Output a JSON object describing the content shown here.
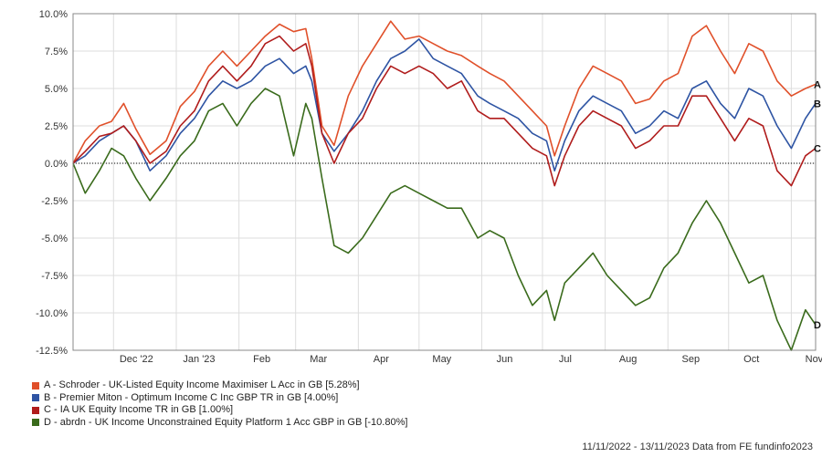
{
  "chart_data": {
    "type": "line",
    "title": "",
    "xlabel": "",
    "ylabel": "",
    "ylim": [
      -12.5,
      10
    ],
    "yticks": [
      -12.5,
      -10,
      -7.5,
      -5,
      -2.5,
      0,
      2.5,
      5,
      7.5,
      10
    ],
    "ytick_labels": [
      "-12.5%",
      "-10.0%",
      "-7.5%",
      "-5.0%",
      "-2.5%",
      "0.0%",
      "2.5%",
      "5.0%",
      "7.5%",
      "10.0%"
    ],
    "x_range": [
      "2022-11-11",
      "2023-11-13"
    ],
    "x_tick_labels": [
      {
        "date": "2022-12-01",
        "label": "Dec '22"
      },
      {
        "date": "2023-01-01",
        "label": "Jan '23"
      },
      {
        "date": "2023-02-01",
        "label": "Feb"
      },
      {
        "date": "2023-03-01",
        "label": "Mar"
      },
      {
        "date": "2023-04-01",
        "label": "Apr"
      },
      {
        "date": "2023-05-01",
        "label": "May"
      },
      {
        "date": "2023-06-01",
        "label": "Jun"
      },
      {
        "date": "2023-07-01",
        "label": "Jul"
      },
      {
        "date": "2023-08-01",
        "label": "Aug"
      },
      {
        "date": "2023-09-01",
        "label": "Sep"
      },
      {
        "date": "2023-10-01",
        "label": "Oct"
      },
      {
        "date": "2023-11-01",
        "label": "Nov"
      }
    ],
    "grid": true,
    "zero_line": "dotted",
    "series": [
      {
        "key": "A",
        "name": "A - Schroder - UK-Listed Equity Income Maximiser L Acc in GB [5.28%]",
        "color": "#e0502a",
        "points": [
          [
            "2022-11-11",
            0.0
          ],
          [
            "2022-11-17",
            1.5
          ],
          [
            "2022-11-24",
            2.5
          ],
          [
            "2022-11-30",
            2.8
          ],
          [
            "2022-12-06",
            4.0
          ],
          [
            "2022-12-12",
            2.3
          ],
          [
            "2022-12-19",
            0.6
          ],
          [
            "2022-12-27",
            1.5
          ],
          [
            "2023-01-03",
            3.8
          ],
          [
            "2023-01-10",
            4.8
          ],
          [
            "2023-01-17",
            6.5
          ],
          [
            "2023-01-24",
            7.5
          ],
          [
            "2023-01-31",
            6.5
          ],
          [
            "2023-02-07",
            7.5
          ],
          [
            "2023-02-14",
            8.5
          ],
          [
            "2023-02-21",
            9.3
          ],
          [
            "2023-02-28",
            8.8
          ],
          [
            "2023-03-06",
            9.0
          ],
          [
            "2023-03-09",
            7.0
          ],
          [
            "2023-03-14",
            2.5
          ],
          [
            "2023-03-20",
            1.2
          ],
          [
            "2023-03-27",
            4.5
          ],
          [
            "2023-04-03",
            6.5
          ],
          [
            "2023-04-10",
            8.0
          ],
          [
            "2023-04-17",
            9.5
          ],
          [
            "2023-04-24",
            8.3
          ],
          [
            "2023-05-01",
            8.5
          ],
          [
            "2023-05-08",
            8.0
          ],
          [
            "2023-05-15",
            7.5
          ],
          [
            "2023-05-22",
            7.2
          ],
          [
            "2023-05-30",
            6.5
          ],
          [
            "2023-06-05",
            6.0
          ],
          [
            "2023-06-12",
            5.5
          ],
          [
            "2023-06-19",
            4.5
          ],
          [
            "2023-06-26",
            3.5
          ],
          [
            "2023-07-03",
            2.5
          ],
          [
            "2023-07-07",
            0.5
          ],
          [
            "2023-07-12",
            2.5
          ],
          [
            "2023-07-19",
            5.0
          ],
          [
            "2023-07-26",
            6.5
          ],
          [
            "2023-08-02",
            6.0
          ],
          [
            "2023-08-09",
            5.5
          ],
          [
            "2023-08-16",
            4.0
          ],
          [
            "2023-08-23",
            4.3
          ],
          [
            "2023-08-30",
            5.5
          ],
          [
            "2023-09-06",
            6.0
          ],
          [
            "2023-09-13",
            8.5
          ],
          [
            "2023-09-20",
            9.2
          ],
          [
            "2023-09-27",
            7.5
          ],
          [
            "2023-10-04",
            6.0
          ],
          [
            "2023-10-11",
            8.0
          ],
          [
            "2023-10-18",
            7.5
          ],
          [
            "2023-10-25",
            5.5
          ],
          [
            "2023-11-01",
            4.5
          ],
          [
            "2023-11-08",
            5.0
          ],
          [
            "2023-11-13",
            5.28
          ]
        ]
      },
      {
        "key": "B",
        "name": "B - Premier Miton - Optimum Income C Inc GBP TR in GB [4.00%]",
        "color": "#2e54a3",
        "points": [
          [
            "2022-11-11",
            0.0
          ],
          [
            "2022-11-17",
            0.5
          ],
          [
            "2022-11-24",
            1.5
          ],
          [
            "2022-11-30",
            2.0
          ],
          [
            "2022-12-06",
            2.5
          ],
          [
            "2022-12-12",
            1.5
          ],
          [
            "2022-12-19",
            -0.5
          ],
          [
            "2022-12-27",
            0.5
          ],
          [
            "2023-01-03",
            2.0
          ],
          [
            "2023-01-10",
            3.0
          ],
          [
            "2023-01-17",
            4.5
          ],
          [
            "2023-01-24",
            5.5
          ],
          [
            "2023-01-31",
            5.0
          ],
          [
            "2023-02-07",
            5.5
          ],
          [
            "2023-02-14",
            6.5
          ],
          [
            "2023-02-21",
            7.0
          ],
          [
            "2023-02-28",
            6.0
          ],
          [
            "2023-03-06",
            6.5
          ],
          [
            "2023-03-09",
            5.5
          ],
          [
            "2023-03-14",
            2.0
          ],
          [
            "2023-03-20",
            0.8
          ],
          [
            "2023-03-27",
            2.0
          ],
          [
            "2023-04-03",
            3.5
          ],
          [
            "2023-04-10",
            5.5
          ],
          [
            "2023-04-17",
            7.0
          ],
          [
            "2023-04-24",
            7.5
          ],
          [
            "2023-05-01",
            8.3
          ],
          [
            "2023-05-08",
            7.0
          ],
          [
            "2023-05-15",
            6.5
          ],
          [
            "2023-05-22",
            6.0
          ],
          [
            "2023-05-30",
            4.5
          ],
          [
            "2023-06-05",
            4.0
          ],
          [
            "2023-06-12",
            3.5
          ],
          [
            "2023-06-19",
            3.0
          ],
          [
            "2023-06-26",
            2.0
          ],
          [
            "2023-07-03",
            1.5
          ],
          [
            "2023-07-07",
            -0.5
          ],
          [
            "2023-07-12",
            1.5
          ],
          [
            "2023-07-19",
            3.5
          ],
          [
            "2023-07-26",
            4.5
          ],
          [
            "2023-08-02",
            4.0
          ],
          [
            "2023-08-09",
            3.5
          ],
          [
            "2023-08-16",
            2.0
          ],
          [
            "2023-08-23",
            2.5
          ],
          [
            "2023-08-30",
            3.5
          ],
          [
            "2023-09-06",
            3.0
          ],
          [
            "2023-09-13",
            5.0
          ],
          [
            "2023-09-20",
            5.5
          ],
          [
            "2023-09-27",
            4.0
          ],
          [
            "2023-10-04",
            3.0
          ],
          [
            "2023-10-11",
            5.0
          ],
          [
            "2023-10-18",
            4.5
          ],
          [
            "2023-10-25",
            2.5
          ],
          [
            "2023-11-01",
            1.0
          ],
          [
            "2023-11-08",
            3.0
          ],
          [
            "2023-11-13",
            4.0
          ]
        ]
      },
      {
        "key": "C",
        "name": "C - IA UK Equity Income TR in GB [1.00%]",
        "color": "#b01c1c",
        "points": [
          [
            "2022-11-11",
            0.0
          ],
          [
            "2022-11-17",
            0.8
          ],
          [
            "2022-11-24",
            1.8
          ],
          [
            "2022-11-30",
            2.0
          ],
          [
            "2022-12-06",
            2.5
          ],
          [
            "2022-12-12",
            1.5
          ],
          [
            "2022-12-19",
            0.0
          ],
          [
            "2022-12-27",
            0.8
          ],
          [
            "2023-01-03",
            2.5
          ],
          [
            "2023-01-10",
            3.5
          ],
          [
            "2023-01-17",
            5.5
          ],
          [
            "2023-01-24",
            6.5
          ],
          [
            "2023-01-31",
            5.5
          ],
          [
            "2023-02-07",
            6.5
          ],
          [
            "2023-02-14",
            8.0
          ],
          [
            "2023-02-21",
            8.5
          ],
          [
            "2023-02-28",
            7.5
          ],
          [
            "2023-03-06",
            8.0
          ],
          [
            "2023-03-09",
            6.5
          ],
          [
            "2023-03-14",
            2.0
          ],
          [
            "2023-03-20",
            0.0
          ],
          [
            "2023-03-27",
            2.0
          ],
          [
            "2023-04-03",
            3.0
          ],
          [
            "2023-04-10",
            5.0
          ],
          [
            "2023-04-17",
            6.5
          ],
          [
            "2023-04-24",
            6.0
          ],
          [
            "2023-05-01",
            6.5
          ],
          [
            "2023-05-08",
            6.0
          ],
          [
            "2023-05-15",
            5.0
          ],
          [
            "2023-05-22",
            5.5
          ],
          [
            "2023-05-30",
            3.5
          ],
          [
            "2023-06-05",
            3.0
          ],
          [
            "2023-06-12",
            3.0
          ],
          [
            "2023-06-19",
            2.0
          ],
          [
            "2023-06-26",
            1.0
          ],
          [
            "2023-07-03",
            0.5
          ],
          [
            "2023-07-07",
            -1.5
          ],
          [
            "2023-07-12",
            0.5
          ],
          [
            "2023-07-19",
            2.5
          ],
          [
            "2023-07-26",
            3.5
          ],
          [
            "2023-08-02",
            3.0
          ],
          [
            "2023-08-09",
            2.5
          ],
          [
            "2023-08-16",
            1.0
          ],
          [
            "2023-08-23",
            1.5
          ],
          [
            "2023-08-30",
            2.5
          ],
          [
            "2023-09-06",
            2.5
          ],
          [
            "2023-09-13",
            4.5
          ],
          [
            "2023-09-20",
            4.5
          ],
          [
            "2023-09-27",
            3.0
          ],
          [
            "2023-10-04",
            1.5
          ],
          [
            "2023-10-11",
            3.0
          ],
          [
            "2023-10-18",
            2.5
          ],
          [
            "2023-10-25",
            -0.5
          ],
          [
            "2023-11-01",
            -1.5
          ],
          [
            "2023-11-08",
            0.5
          ],
          [
            "2023-11-13",
            1.0
          ]
        ]
      },
      {
        "key": "D",
        "name": "D - abrdn - UK Income Unconstrained Equity Platform 1 Acc GBP in GB [-10.80%]",
        "color": "#3a6b1c",
        "points": [
          [
            "2022-11-11",
            0.0
          ],
          [
            "2022-11-17",
            -2.0
          ],
          [
            "2022-11-24",
            -0.5
          ],
          [
            "2022-11-30",
            1.0
          ],
          [
            "2022-12-06",
            0.5
          ],
          [
            "2022-12-12",
            -1.0
          ],
          [
            "2022-12-19",
            -2.5
          ],
          [
            "2022-12-27",
            -1.0
          ],
          [
            "2023-01-03",
            0.5
          ],
          [
            "2023-01-10",
            1.5
          ],
          [
            "2023-01-17",
            3.5
          ],
          [
            "2023-01-24",
            4.0
          ],
          [
            "2023-01-31",
            2.5
          ],
          [
            "2023-02-07",
            4.0
          ],
          [
            "2023-02-14",
            5.0
          ],
          [
            "2023-02-21",
            4.5
          ],
          [
            "2023-02-28",
            0.5
          ],
          [
            "2023-03-06",
            4.0
          ],
          [
            "2023-03-09",
            3.0
          ],
          [
            "2023-03-14",
            -1.0
          ],
          [
            "2023-03-20",
            -5.5
          ],
          [
            "2023-03-27",
            -6.0
          ],
          [
            "2023-04-03",
            -5.0
          ],
          [
            "2023-04-10",
            -3.5
          ],
          [
            "2023-04-17",
            -2.0
          ],
          [
            "2023-04-24",
            -1.5
          ],
          [
            "2023-05-01",
            -2.0
          ],
          [
            "2023-05-08",
            -2.5
          ],
          [
            "2023-05-15",
            -3.0
          ],
          [
            "2023-05-22",
            -3.0
          ],
          [
            "2023-05-30",
            -5.0
          ],
          [
            "2023-06-05",
            -4.5
          ],
          [
            "2023-06-12",
            -5.0
          ],
          [
            "2023-06-19",
            -7.5
          ],
          [
            "2023-06-26",
            -9.5
          ],
          [
            "2023-07-03",
            -8.5
          ],
          [
            "2023-07-07",
            -10.5
          ],
          [
            "2023-07-12",
            -8.0
          ],
          [
            "2023-07-19",
            -7.0
          ],
          [
            "2023-07-26",
            -6.0
          ],
          [
            "2023-08-02",
            -7.5
          ],
          [
            "2023-08-09",
            -8.5
          ],
          [
            "2023-08-16",
            -9.5
          ],
          [
            "2023-08-23",
            -9.0
          ],
          [
            "2023-08-30",
            -7.0
          ],
          [
            "2023-09-06",
            -6.0
          ],
          [
            "2023-09-13",
            -4.0
          ],
          [
            "2023-09-20",
            -2.5
          ],
          [
            "2023-09-27",
            -4.0
          ],
          [
            "2023-10-04",
            -6.0
          ],
          [
            "2023-10-11",
            -8.0
          ],
          [
            "2023-10-18",
            -7.5
          ],
          [
            "2023-10-25",
            -10.5
          ],
          [
            "2023-11-01",
            -12.5
          ],
          [
            "2023-11-08",
            -9.8
          ],
          [
            "2023-11-13",
            -10.8
          ]
        ]
      }
    ]
  },
  "footer": {
    "text": "11/11/2022 - 13/11/2023 Data from FE fundinfo2023"
  }
}
